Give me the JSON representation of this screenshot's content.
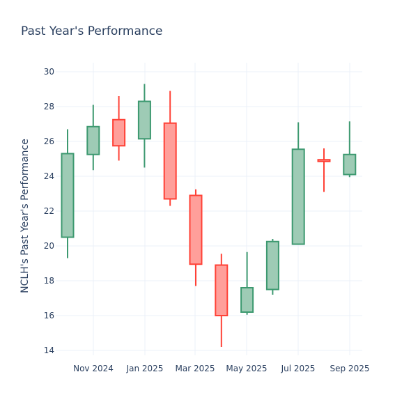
{
  "chart_data": {
    "type": "candlestick",
    "title": "Past Year's Performance",
    "xlabel": "",
    "ylabel": "NCLH's Past Year's Performance",
    "ylim": [
      13.6,
      30.2
    ],
    "yticks": [
      14,
      16,
      18,
      20,
      22,
      24,
      26,
      28,
      30
    ],
    "xtick_labels": [
      "Nov 2024",
      "Jan 2025",
      "Mar 2025",
      "May 2025",
      "Jul 2025",
      "Sep 2025"
    ],
    "grid": true,
    "colors": {
      "increasing": "#3d9970",
      "increasing_fill": "#9ecbb5",
      "decreasing": "#ff4136",
      "decreasing_fill": "#ff9f9a",
      "text": "#2a3f5f",
      "grid": "#ebf0f8"
    },
    "candles": [
      {
        "open": 20.5,
        "high": 26.7,
        "low": 19.3,
        "close": 25.3
      },
      {
        "open": 25.25,
        "high": 28.1,
        "low": 24.35,
        "close": 26.85
      },
      {
        "open": 27.25,
        "high": 28.6,
        "low": 24.9,
        "close": 25.75
      },
      {
        "open": 26.15,
        "high": 29.3,
        "low": 24.5,
        "close": 28.3
      },
      {
        "open": 27.05,
        "high": 28.9,
        "low": 22.3,
        "close": 22.7
      },
      {
        "open": 22.9,
        "high": 23.25,
        "low": 17.7,
        "close": 18.95
      },
      {
        "open": 18.9,
        "high": 19.55,
        "low": 14.2,
        "close": 16.0
      },
      {
        "open": 16.2,
        "high": 19.65,
        "low": 16.05,
        "close": 17.6
      },
      {
        "open": 17.5,
        "high": 20.4,
        "low": 17.2,
        "close": 20.25
      },
      {
        "open": 20.1,
        "high": 27.1,
        "low": 20.1,
        "close": 25.55
      },
      {
        "open": 24.95,
        "high": 25.6,
        "low": 23.1,
        "close": 24.85
      },
      {
        "open": 24.1,
        "high": 27.15,
        "low": 23.95,
        "close": 25.25
      }
    ]
  }
}
